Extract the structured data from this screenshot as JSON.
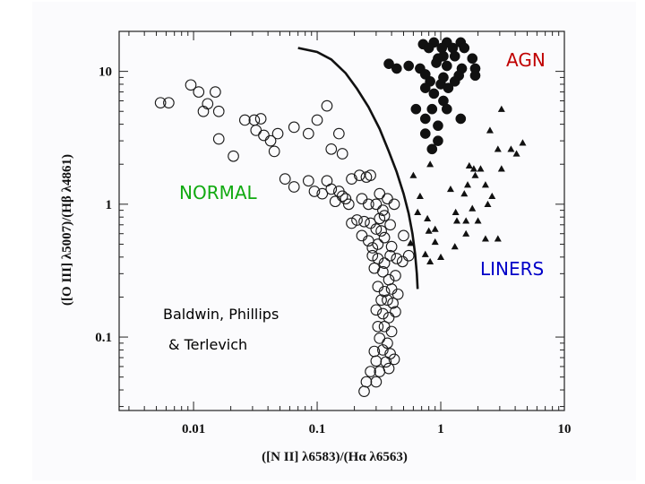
{
  "chart_data": {
    "type": "scatter",
    "xlabel": "([N II] λ6583)/(Hα λ6563)",
    "ylabel": "([O III] λ5007)/(Hβ λ4861)",
    "xscale": "log",
    "yscale": "log",
    "xlim": [
      0.0025,
      10
    ],
    "ylim": [
      0.028,
      20
    ],
    "xticks": [
      {
        "value": 0.01,
        "label": "0.01"
      },
      {
        "value": 0.1,
        "label": "0.1"
      },
      {
        "value": 1,
        "label": "1"
      },
      {
        "value": 10,
        "label": "10"
      }
    ],
    "yticks": [
      {
        "value": 0.1,
        "label": "0.1"
      },
      {
        "value": 1,
        "label": "1"
      },
      {
        "value": 10,
        "label": "10"
      }
    ],
    "grid": false,
    "series": [
      {
        "name": "NORMAL",
        "marker": "open-circle",
        "points": [
          [
            0.0054,
            5.8
          ],
          [
            0.0063,
            5.8
          ],
          [
            0.0095,
            7.9
          ],
          [
            0.011,
            7.0
          ],
          [
            0.013,
            5.7
          ],
          [
            0.015,
            7.0
          ],
          [
            0.012,
            5.0
          ],
          [
            0.016,
            5.0
          ],
          [
            0.016,
            3.1
          ],
          [
            0.021,
            2.3
          ],
          [
            0.026,
            4.3
          ],
          [
            0.031,
            4.3
          ],
          [
            0.032,
            3.6
          ],
          [
            0.035,
            4.4
          ],
          [
            0.037,
            3.3
          ],
          [
            0.042,
            3.0
          ],
          [
            0.045,
            2.5
          ],
          [
            0.048,
            3.4
          ],
          [
            0.065,
            3.8
          ],
          [
            0.085,
            3.4
          ],
          [
            0.1,
            4.3
          ],
          [
            0.12,
            5.5
          ],
          [
            0.13,
            2.6
          ],
          [
            0.15,
            3.4
          ],
          [
            0.16,
            2.4
          ],
          [
            0.055,
            1.55
          ],
          [
            0.065,
            1.35
          ],
          [
            0.085,
            1.5
          ],
          [
            0.095,
            1.25
          ],
          [
            0.11,
            1.2
          ],
          [
            0.12,
            1.5
          ],
          [
            0.13,
            1.3
          ],
          [
            0.14,
            1.05
          ],
          [
            0.15,
            1.25
          ],
          [
            0.16,
            1.15
          ],
          [
            0.17,
            1.1
          ],
          [
            0.18,
            1.0
          ],
          [
            0.19,
            1.55
          ],
          [
            0.22,
            1.65
          ],
          [
            0.25,
            1.6
          ],
          [
            0.27,
            1.65
          ],
          [
            0.32,
            1.2
          ],
          [
            0.23,
            1.1
          ],
          [
            0.26,
            1.0
          ],
          [
            0.3,
            1.0
          ],
          [
            0.34,
            0.9
          ],
          [
            0.37,
            1.1
          ],
          [
            0.42,
            1.0
          ],
          [
            0.19,
            0.72
          ],
          [
            0.21,
            0.76
          ],
          [
            0.24,
            0.74
          ],
          [
            0.27,
            0.72
          ],
          [
            0.3,
            0.65
          ],
          [
            0.32,
            0.78
          ],
          [
            0.35,
            0.82
          ],
          [
            0.39,
            0.7
          ],
          [
            0.33,
            0.63
          ],
          [
            0.23,
            0.58
          ],
          [
            0.26,
            0.53
          ],
          [
            0.28,
            0.47
          ],
          [
            0.31,
            0.5
          ],
          [
            0.35,
            0.56
          ],
          [
            0.4,
            0.48
          ],
          [
            0.5,
            0.58
          ],
          [
            0.28,
            0.41
          ],
          [
            0.31,
            0.39
          ],
          [
            0.35,
            0.36
          ],
          [
            0.39,
            0.41
          ],
          [
            0.44,
            0.39
          ],
          [
            0.49,
            0.37
          ],
          [
            0.55,
            0.41
          ],
          [
            0.29,
            0.33
          ],
          [
            0.34,
            0.31
          ],
          [
            0.38,
            0.27
          ],
          [
            0.43,
            0.29
          ],
          [
            0.31,
            0.24
          ],
          [
            0.35,
            0.22
          ],
          [
            0.4,
            0.23
          ],
          [
            0.45,
            0.21
          ],
          [
            0.33,
            0.19
          ],
          [
            0.37,
            0.19
          ],
          [
            0.41,
            0.18
          ],
          [
            0.3,
            0.16
          ],
          [
            0.34,
            0.15
          ],
          [
            0.38,
            0.14
          ],
          [
            0.43,
            0.155
          ],
          [
            0.31,
            0.12
          ],
          [
            0.35,
            0.12
          ],
          [
            0.4,
            0.11
          ],
          [
            0.32,
            0.098
          ],
          [
            0.37,
            0.09
          ],
          [
            0.29,
            0.078
          ],
          [
            0.34,
            0.08
          ],
          [
            0.39,
            0.075
          ],
          [
            0.3,
            0.066
          ],
          [
            0.36,
            0.065
          ],
          [
            0.42,
            0.068
          ],
          [
            0.27,
            0.055
          ],
          [
            0.32,
            0.055
          ],
          [
            0.38,
            0.058
          ],
          [
            0.25,
            0.046
          ],
          [
            0.3,
            0.046
          ],
          [
            0.24,
            0.039
          ]
        ]
      },
      {
        "name": "AGN",
        "marker": "filled-circle",
        "points": [
          [
            0.72,
            16
          ],
          [
            0.88,
            16.5
          ],
          [
            1.12,
            16.5
          ],
          [
            1.45,
            16.5
          ],
          [
            0.8,
            15
          ],
          [
            1.02,
            15
          ],
          [
            1.25,
            15
          ],
          [
            1.55,
            15
          ],
          [
            1.05,
            13
          ],
          [
            1.3,
            13
          ],
          [
            0.95,
            12.5
          ],
          [
            1.8,
            12.5
          ],
          [
            0.38,
            11.4
          ],
          [
            0.44,
            10.5
          ],
          [
            0.55,
            11
          ],
          [
            0.68,
            10.5
          ],
          [
            0.92,
            11.6
          ],
          [
            1.12,
            11
          ],
          [
            1.48,
            10.5
          ],
          [
            0.75,
            9.5
          ],
          [
            1.05,
            9.0
          ],
          [
            1.4,
            9.3
          ],
          [
            1.9,
            9.3
          ],
          [
            1.9,
            10.5
          ],
          [
            0.82,
            8.4
          ],
          [
            1.0,
            8.0
          ],
          [
            1.3,
            8.4
          ],
          [
            1.15,
            7.5
          ],
          [
            0.75,
            7.5
          ],
          [
            0.88,
            6.8
          ],
          [
            1.05,
            6.0
          ],
          [
            0.63,
            5.2
          ],
          [
            0.85,
            5.2
          ],
          [
            1.12,
            5.2
          ],
          [
            1.45,
            4.4
          ],
          [
            0.75,
            4.4
          ],
          [
            0.95,
            3.9
          ],
          [
            0.75,
            3.4
          ],
          [
            0.95,
            3.0
          ],
          [
            0.85,
            2.6
          ]
        ]
      },
      {
        "name": "LINERS",
        "marker": "filled-triangle",
        "points": [
          [
            3.1,
            5.2
          ],
          [
            2.5,
            3.6
          ],
          [
            3.7,
            2.6
          ],
          [
            2.9,
            2.6
          ],
          [
            4.6,
            2.9
          ],
          [
            4.1,
            2.4
          ],
          [
            0.82,
            2.0
          ],
          [
            1.7,
            1.95
          ],
          [
            1.85,
            1.85
          ],
          [
            2.1,
            1.85
          ],
          [
            3.1,
            1.85
          ],
          [
            0.6,
            1.65
          ],
          [
            1.9,
            1.65
          ],
          [
            1.65,
            1.4
          ],
          [
            2.3,
            1.4
          ],
          [
            0.68,
            1.15
          ],
          [
            1.2,
            1.3
          ],
          [
            1.55,
            1.2
          ],
          [
            2.6,
            1.15
          ],
          [
            2.4,
            1.0
          ],
          [
            0.65,
            0.87
          ],
          [
            1.32,
            0.87
          ],
          [
            1.8,
            0.93
          ],
          [
            2.0,
            0.75
          ],
          [
            1.6,
            0.75
          ],
          [
            1.35,
            0.75
          ],
          [
            0.78,
            0.78
          ],
          [
            0.8,
            0.63
          ],
          [
            0.9,
            0.65
          ],
          [
            1.6,
            0.6
          ],
          [
            2.3,
            0.55
          ],
          [
            0.9,
            0.52
          ],
          [
            0.75,
            0.42
          ],
          [
            1.3,
            0.48
          ],
          [
            1.0,
            0.4
          ],
          [
            0.82,
            0.37
          ],
          [
            2.9,
            0.55
          ],
          [
            0.57,
            0.51
          ]
        ]
      }
    ],
    "boundary_curve": [
      [
        0.07,
        15
      ],
      [
        0.1,
        14
      ],
      [
        0.13,
        12.3
      ],
      [
        0.17,
        9.7
      ],
      [
        0.21,
        7.4
      ],
      [
        0.26,
        5.4
      ],
      [
        0.32,
        3.7
      ],
      [
        0.38,
        2.5
      ],
      [
        0.44,
        1.75
      ],
      [
        0.5,
        1.2
      ],
      [
        0.55,
        0.85
      ],
      [
        0.59,
        0.6
      ],
      [
        0.62,
        0.42
      ],
      [
        0.64,
        0.3
      ],
      [
        0.65,
        0.23
      ]
    ],
    "annotations": [
      {
        "text": "AGN",
        "color": "#c00000"
      },
      {
        "text": "NORMAL",
        "color": "#11aa11"
      },
      {
        "text": "LINERS",
        "color": "#0000c8"
      },
      {
        "text": "Baldwin, Phillips"
      },
      {
        "text": "& Terlevich"
      }
    ]
  }
}
